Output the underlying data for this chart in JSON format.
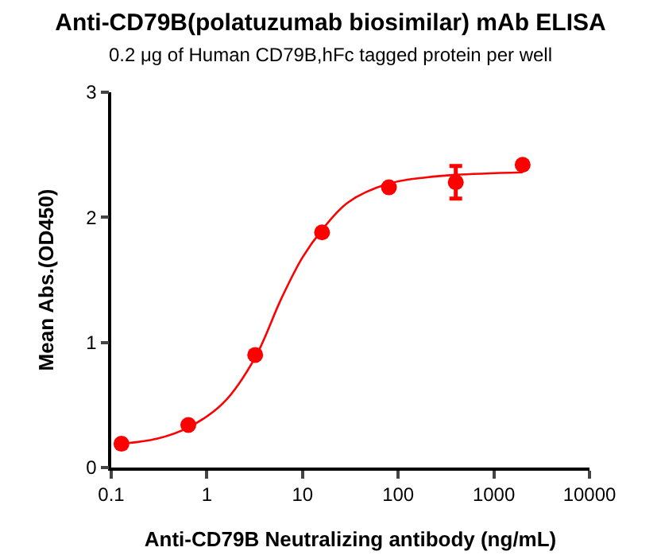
{
  "chart_data": {
    "type": "scatter",
    "title": "Anti-CD79B(polatuzumab biosimilar) mAb ELISA",
    "subtitle": "0.2 μg of Human CD79B,hFc tagged protein per well",
    "xlabel": "Anti-CD79B Neutralizing antibody (ng/mL)",
    "ylabel": "Mean Abs.(OD450)",
    "x": [
      0.128,
      0.64,
      3.2,
      16,
      80,
      400,
      2000
    ],
    "series": [
      {
        "color": "#ff0000",
        "values": [
          0.19,
          0.34,
          0.9,
          1.88,
          2.24,
          2.28,
          2.42
        ],
        "errors": [
          null,
          null,
          null,
          null,
          null,
          0.13,
          null
        ],
        "marker": "circle"
      },
      {
        "type": "line",
        "color": "#ff0000",
        "x": [
          0.128,
          0.3,
          0.64,
          1.5,
          3.2,
          6,
          10,
          16,
          30,
          80,
          200,
          400,
          2000
        ],
        "values": [
          0.19,
          0.23,
          0.32,
          0.52,
          0.88,
          1.35,
          1.68,
          1.9,
          2.12,
          2.27,
          2.32,
          2.34,
          2.36
        ],
        "marker": "none",
        "line_style": "solid"
      }
    ],
    "log": "x",
    "xlim": [
      0.1,
      10000
    ],
    "xticks": [
      0.1,
      1,
      10,
      100,
      1000,
      10000
    ],
    "ylim": [
      0,
      3
    ],
    "yticks": [
      0,
      1,
      2,
      3
    ],
    "grid": false
  }
}
